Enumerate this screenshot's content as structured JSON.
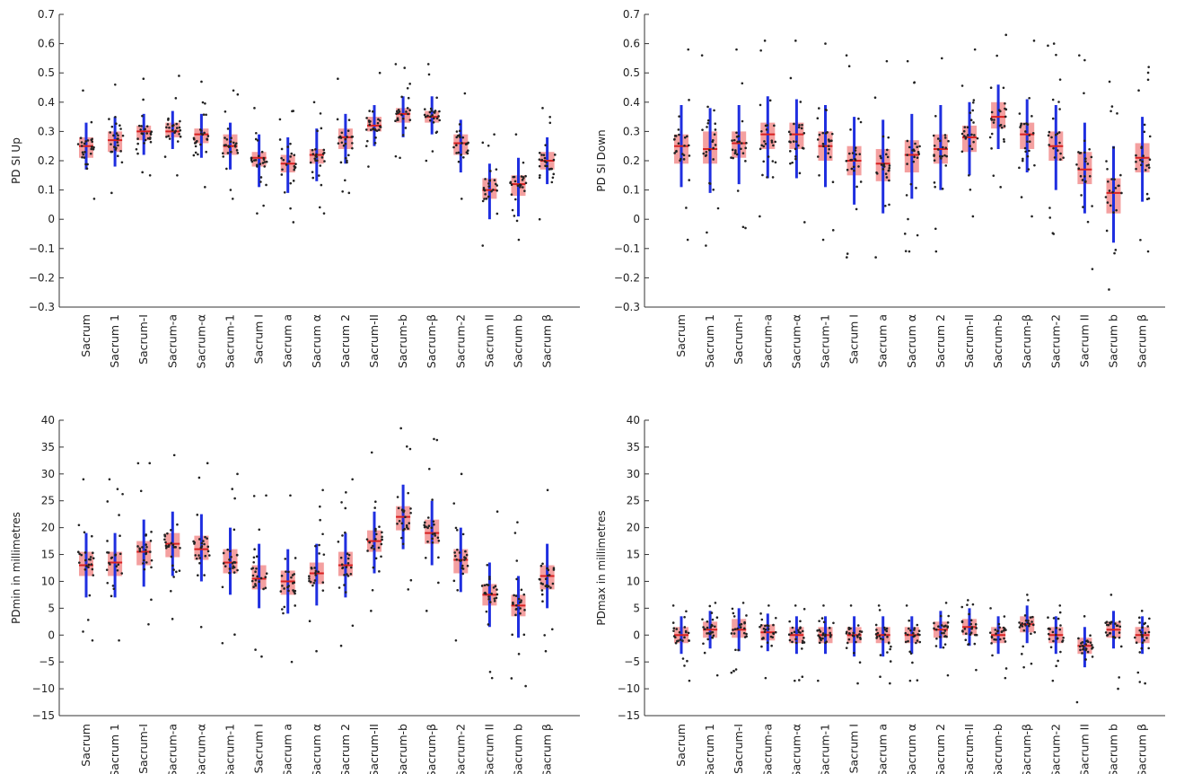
{
  "categories": [
    "Sacrum",
    "Sacrum 1",
    "Sacrum-I",
    "Sacrum-a",
    "Sacrum-α",
    "Sacrum-1",
    "Sacrum I",
    "Sacrum a",
    "Sacrum α",
    "Sacrum 2",
    "Sacrum-II",
    "Sacrum-b",
    "Sacrum-β",
    "Sacrum-2",
    "Sacrum II",
    "Sacrum b",
    "Sacrum β"
  ],
  "colors": {
    "box": "#f4a0a0",
    "median": "#d62020",
    "whisker": "#1f2fe0",
    "points": "#222222",
    "axis": "#333333"
  },
  "chart_data": [
    {
      "type": "box",
      "ylabel": "PD SI Up",
      "ylim": [
        -0.3,
        0.7
      ],
      "yticks": [
        -0.3,
        -0.2,
        -0.1,
        0,
        0.1,
        0.2,
        0.3,
        0.4,
        0.5,
        0.6,
        0.7
      ],
      "ytick_labels": [
        "−0.3",
        "−0.2",
        "−0.1",
        "0",
        "0.1",
        "0.2",
        "0.3",
        "0.4",
        "0.5",
        "0.6",
        "0.7"
      ],
      "categories": [
        "Sacrum",
        "Sacrum 1",
        "Sacrum-I",
        "Sacrum-a",
        "Sacrum-α",
        "Sacrum-1",
        "Sacrum I",
        "Sacrum a",
        "Sacrum α",
        "Sacrum 2",
        "Sacrum-II",
        "Sacrum-b",
        "Sacrum-β",
        "Sacrum-2",
        "Sacrum II",
        "Sacrum b",
        "Sacrum β"
      ],
      "boxes": [
        {
          "q1": 0.21,
          "median": 0.25,
          "q3": 0.28,
          "whislo": 0.17,
          "whishi": 0.33,
          "min": 0.07,
          "max": 0.44
        },
        {
          "q1": 0.23,
          "median": 0.27,
          "q3": 0.3,
          "whislo": 0.18,
          "whishi": 0.35,
          "min": 0.09,
          "max": 0.46
        },
        {
          "q1": 0.27,
          "median": 0.3,
          "q3": 0.32,
          "whislo": 0.22,
          "whishi": 0.36,
          "min": 0.15,
          "max": 0.48
        },
        {
          "q1": 0.28,
          "median": 0.3,
          "q3": 0.33,
          "whislo": 0.24,
          "whishi": 0.37,
          "min": 0.15,
          "max": 0.49
        },
        {
          "q1": 0.26,
          "median": 0.29,
          "q3": 0.31,
          "whislo": 0.21,
          "whishi": 0.36,
          "min": 0.11,
          "max": 0.47
        },
        {
          "q1": 0.22,
          "median": 0.25,
          "q3": 0.29,
          "whislo": 0.17,
          "whishi": 0.33,
          "min": 0.07,
          "max": 0.44
        },
        {
          "q1": 0.18,
          "median": 0.21,
          "q3": 0.23,
          "whislo": 0.11,
          "whishi": 0.29,
          "min": 0.02,
          "max": 0.38
        },
        {
          "q1": 0.16,
          "median": 0.19,
          "q3": 0.22,
          "whislo": 0.09,
          "whishi": 0.28,
          "min": -0.01,
          "max": 0.37
        },
        {
          "q1": 0.19,
          "median": 0.22,
          "q3": 0.24,
          "whislo": 0.13,
          "whishi": 0.31,
          "min": 0.02,
          "max": 0.4
        },
        {
          "q1": 0.24,
          "median": 0.28,
          "q3": 0.31,
          "whislo": 0.19,
          "whishi": 0.36,
          "min": 0.09,
          "max": 0.48
        },
        {
          "q1": 0.3,
          "median": 0.32,
          "q3": 0.35,
          "whislo": 0.25,
          "whishi": 0.39,
          "min": 0.18,
          "max": 0.5
        },
        {
          "q1": 0.33,
          "median": 0.36,
          "q3": 0.38,
          "whislo": 0.28,
          "whishi": 0.42,
          "min": 0.21,
          "max": 0.53
        },
        {
          "q1": 0.33,
          "median": 0.35,
          "q3": 0.37,
          "whislo": 0.29,
          "whishi": 0.42,
          "min": 0.2,
          "max": 0.53
        },
        {
          "q1": 0.22,
          "median": 0.26,
          "q3": 0.29,
          "whislo": 0.16,
          "whishi": 0.34,
          "min": 0.07,
          "max": 0.43
        },
        {
          "q1": 0.07,
          "median": 0.1,
          "q3": 0.14,
          "whislo": 0.0,
          "whishi": 0.19,
          "min": -0.09,
          "max": 0.29
        },
        {
          "q1": 0.08,
          "median": 0.12,
          "q3": 0.15,
          "whislo": 0.01,
          "whishi": 0.21,
          "min": -0.07,
          "max": 0.29
        },
        {
          "q1": 0.17,
          "median": 0.2,
          "q3": 0.23,
          "whislo": 0.12,
          "whishi": 0.28,
          "min": 0.0,
          "max": 0.38
        }
      ]
    },
    {
      "type": "box",
      "ylabel": "PD SI Down",
      "ylim": [
        -0.3,
        0.7
      ],
      "yticks": [
        -0.3,
        -0.2,
        -0.1,
        0,
        0.1,
        0.2,
        0.3,
        0.4,
        0.5,
        0.6,
        0.7
      ],
      "ytick_labels": [
        "−0.3",
        "−0.2",
        "−0.1",
        "0",
        "0.1",
        "0.2",
        "0.3",
        "0.4",
        "0.5",
        "0.6",
        "0.7"
      ],
      "categories": [
        "Sacrum",
        "Sacrum 1",
        "Sacrum-I",
        "Sacrum-a",
        "Sacrum-α",
        "Sacrum-1",
        "Sacrum I",
        "Sacrum a",
        "Sacrum α",
        "Sacrum 2",
        "Sacrum-II",
        "Sacrum-b",
        "Sacrum-β",
        "Sacrum-2",
        "Sacrum II",
        "Sacrum b",
        "Sacrum β"
      ],
      "boxes": [
        {
          "q1": 0.19,
          "median": 0.25,
          "q3": 0.29,
          "whislo": 0.11,
          "whishi": 0.39,
          "min": -0.07,
          "max": 0.58
        },
        {
          "q1": 0.19,
          "median": 0.24,
          "q3": 0.3,
          "whislo": 0.09,
          "whishi": 0.38,
          "min": -0.09,
          "max": 0.56
        },
        {
          "q1": 0.21,
          "median": 0.26,
          "q3": 0.3,
          "whislo": 0.12,
          "whishi": 0.39,
          "min": -0.03,
          "max": 0.58
        },
        {
          "q1": 0.24,
          "median": 0.29,
          "q3": 0.33,
          "whislo": 0.14,
          "whishi": 0.42,
          "min": 0.01,
          "max": 0.61
        },
        {
          "q1": 0.24,
          "median": 0.29,
          "q3": 0.33,
          "whislo": 0.14,
          "whishi": 0.41,
          "min": -0.01,
          "max": 0.61
        },
        {
          "q1": 0.2,
          "median": 0.25,
          "q3": 0.3,
          "whislo": 0.11,
          "whishi": 0.39,
          "min": -0.07,
          "max": 0.6
        },
        {
          "q1": 0.15,
          "median": 0.2,
          "q3": 0.25,
          "whislo": 0.05,
          "whishi": 0.35,
          "min": -0.13,
          "max": 0.56
        },
        {
          "q1": 0.13,
          "median": 0.19,
          "q3": 0.24,
          "whislo": 0.02,
          "whishi": 0.34,
          "min": -0.13,
          "max": 0.54
        },
        {
          "q1": 0.16,
          "median": 0.22,
          "q3": 0.27,
          "whislo": 0.07,
          "whishi": 0.36,
          "min": -0.11,
          "max": 0.54
        },
        {
          "q1": 0.19,
          "median": 0.24,
          "q3": 0.29,
          "whislo": 0.1,
          "whishi": 0.39,
          "min": -0.11,
          "max": 0.55
        },
        {
          "q1": 0.23,
          "median": 0.28,
          "q3": 0.32,
          "whislo": 0.15,
          "whishi": 0.4,
          "min": 0.01,
          "max": 0.58
        },
        {
          "q1": 0.31,
          "median": 0.35,
          "q3": 0.4,
          "whislo": 0.24,
          "whishi": 0.46,
          "min": 0.11,
          "max": 0.63
        },
        {
          "q1": 0.24,
          "median": 0.29,
          "q3": 0.33,
          "whislo": 0.16,
          "whishi": 0.41,
          "min": 0.01,
          "max": 0.61
        },
        {
          "q1": 0.2,
          "median": 0.25,
          "q3": 0.3,
          "whislo": 0.1,
          "whishi": 0.39,
          "min": -0.05,
          "max": 0.6
        },
        {
          "q1": 0.12,
          "median": 0.17,
          "q3": 0.23,
          "whislo": 0.02,
          "whishi": 0.33,
          "min": -0.17,
          "max": 0.56
        },
        {
          "q1": 0.02,
          "median": 0.09,
          "q3": 0.14,
          "whislo": -0.08,
          "whishi": 0.25,
          "min": -0.24,
          "max": 0.47
        },
        {
          "q1": 0.16,
          "median": 0.21,
          "q3": 0.26,
          "whislo": 0.06,
          "whishi": 0.35,
          "min": -0.11,
          "max": 0.52
        }
      ]
    },
    {
      "type": "box",
      "ylabel": "PDmin in millimetres",
      "ylim": [
        -15,
        40
      ],
      "yticks": [
        -15,
        -10,
        -5,
        0,
        5,
        10,
        15,
        20,
        25,
        30,
        35,
        40
      ],
      "ytick_labels": [
        "−15",
        "−10",
        "−5",
        "0",
        "5",
        "10",
        "15",
        "20",
        "25",
        "30",
        "35",
        "40"
      ],
      "categories": [
        "Sacrum",
        "Sacrum 1",
        "Sacrum-I",
        "Sacrum-a",
        "Sacrum-α",
        "Sacrum-1",
        "Sacrum I",
        "Sacrum a",
        "Sacrum α",
        "Sacrum 2",
        "Sacrum-II",
        "Sacrum-b",
        "Sacrum-β",
        "Sacrum-2",
        "Sacrum II",
        "Sacrum b",
        "Sacrum β"
      ],
      "boxes": [
        {
          "q1": 11.0,
          "median": 13.0,
          "q3": 15.5,
          "whislo": 7.0,
          "whishi": 19.0,
          "min": -1.0,
          "max": 29.0
        },
        {
          "q1": 11.0,
          "median": 13.5,
          "q3": 15.5,
          "whislo": 7.0,
          "whishi": 19.0,
          "min": -1.0,
          "max": 29.0
        },
        {
          "q1": 13.0,
          "median": 15.5,
          "q3": 17.5,
          "whislo": 9.0,
          "whishi": 21.5,
          "min": 2.0,
          "max": 32.0
        },
        {
          "q1": 14.5,
          "median": 17.0,
          "q3": 19.0,
          "whislo": 11.0,
          "whishi": 23.0,
          "min": 3.0,
          "max": 33.5
        },
        {
          "q1": 14.0,
          "median": 16.0,
          "q3": 18.5,
          "whislo": 10.0,
          "whishi": 22.5,
          "min": 1.5,
          "max": 32.0
        },
        {
          "q1": 11.5,
          "median": 13.5,
          "q3": 16.0,
          "whislo": 7.5,
          "whishi": 20.0,
          "min": -1.5,
          "max": 30.0
        },
        {
          "q1": 8.5,
          "median": 10.5,
          "q3": 13.0,
          "whislo": 5.0,
          "whishi": 17.0,
          "min": -4.0,
          "max": 26.0
        },
        {
          "q1": 7.5,
          "median": 10.0,
          "q3": 12.0,
          "whislo": 4.0,
          "whishi": 16.0,
          "min": -5.0,
          "max": 26.0
        },
        {
          "q1": 9.5,
          "median": 11.5,
          "q3": 13.5,
          "whislo": 5.5,
          "whishi": 17.0,
          "min": -3.0,
          "max": 27.0
        },
        {
          "q1": 11.0,
          "median": 13.0,
          "q3": 15.5,
          "whislo": 7.0,
          "whishi": 19.0,
          "min": -2.0,
          "max": 29.0
        },
        {
          "q1": 15.5,
          "median": 17.5,
          "q3": 19.5,
          "whislo": 11.5,
          "whishi": 23.0,
          "min": 4.5,
          "max": 34.0
        },
        {
          "q1": 19.5,
          "median": 22.0,
          "q3": 24.0,
          "whislo": 16.0,
          "whishi": 28.0,
          "min": 8.5,
          "max": 38.5
        },
        {
          "q1": 17.0,
          "median": 19.0,
          "q3": 21.5,
          "whislo": 13.0,
          "whishi": 25.0,
          "min": 4.5,
          "max": 36.5
        },
        {
          "q1": 11.5,
          "median": 14.0,
          "q3": 16.0,
          "whislo": 8.0,
          "whishi": 20.0,
          "min": -1.0,
          "max": 30.0
        },
        {
          "q1": 5.5,
          "median": 7.5,
          "q3": 9.5,
          "whislo": 1.5,
          "whishi": 13.5,
          "min": -8.0,
          "max": 23.0
        },
        {
          "q1": 3.5,
          "median": 5.5,
          "q3": 7.5,
          "whislo": -0.5,
          "whishi": 11.0,
          "min": -9.5,
          "max": 21.0
        },
        {
          "q1": 8.5,
          "median": 11.0,
          "q3": 13.0,
          "whislo": 5.0,
          "whishi": 17.0,
          "min": -3.0,
          "max": 27.0
        }
      ]
    },
    {
      "type": "box",
      "ylabel": "PDmax in millimetres",
      "ylim": [
        -15,
        40
      ],
      "yticks": [
        -15,
        -10,
        -5,
        0,
        5,
        10,
        15,
        20,
        25,
        30,
        35,
        40
      ],
      "ytick_labels": [
        "−15",
        "−10",
        "−5",
        "0",
        "5",
        "10",
        "15",
        "20",
        "25",
        "30",
        "35",
        "40"
      ],
      "categories": [
        "Sacrum",
        "Sacrum 1",
        "Sacrum-I",
        "Sacrum-a",
        "Sacrum-α",
        "Sacrum-1",
        "Sacrum I",
        "Sacrum a",
        "Sacrum α",
        "Sacrum 2",
        "Sacrum-II",
        "Sacrum-b",
        "Sacrum-β",
        "Sacrum-2",
        "Sacrum II",
        "Sacrum b",
        "Sacrum β"
      ],
      "boxes": [
        {
          "q1": -1.5,
          "median": 0.0,
          "q3": 1.5,
          "whislo": -3.5,
          "whishi": 3.5,
          "min": -8.5,
          "max": 5.5
        },
        {
          "q1": -0.5,
          "median": 1.0,
          "q3": 2.5,
          "whislo": -2.5,
          "whishi": 4.5,
          "min": -7.5,
          "max": 6.0
        },
        {
          "q1": -0.5,
          "median": 1.0,
          "q3": 3.0,
          "whislo": -3.0,
          "whishi": 5.0,
          "min": -7.0,
          "max": 6.0
        },
        {
          "q1": -1.0,
          "median": 0.5,
          "q3": 2.0,
          "whislo": -3.0,
          "whishi": 4.0,
          "min": -8.0,
          "max": 5.5
        },
        {
          "q1": -1.5,
          "median": 0.0,
          "q3": 1.5,
          "whislo": -3.5,
          "whishi": 3.5,
          "min": -8.5,
          "max": 5.5
        },
        {
          "q1": -1.5,
          "median": 0.0,
          "q3": 1.5,
          "whislo": -3.5,
          "whishi": 3.5,
          "min": -8.5,
          "max": 5.5
        },
        {
          "q1": -1.5,
          "median": 0.0,
          "q3": 1.5,
          "whislo": -4.0,
          "whishi": 3.5,
          "min": -9.0,
          "max": 5.5
        },
        {
          "q1": -1.5,
          "median": 0.0,
          "q3": 1.5,
          "whislo": -4.0,
          "whishi": 3.5,
          "min": -9.0,
          "max": 5.5
        },
        {
          "q1": -1.5,
          "median": 0.0,
          "q3": 1.5,
          "whislo": -3.5,
          "whishi": 3.5,
          "min": -8.5,
          "max": 5.5
        },
        {
          "q1": -0.5,
          "median": 1.0,
          "q3": 2.5,
          "whislo": -2.5,
          "whishi": 4.5,
          "min": -7.5,
          "max": 6.0
        },
        {
          "q1": 0.0,
          "median": 1.5,
          "q3": 3.0,
          "whislo": -2.0,
          "whishi": 5.0,
          "min": -6.5,
          "max": 6.5
        },
        {
          "q1": -1.5,
          "median": 0.0,
          "q3": 1.5,
          "whislo": -3.5,
          "whishi": 3.5,
          "min": -8.0,
          "max": 5.0
        },
        {
          "q1": 0.5,
          "median": 2.0,
          "q3": 3.5,
          "whislo": -1.5,
          "whishi": 5.5,
          "min": -6.0,
          "max": 7.5
        },
        {
          "q1": -1.5,
          "median": 0.0,
          "q3": 1.5,
          "whislo": -3.5,
          "whishi": 3.5,
          "min": -8.5,
          "max": 5.5
        },
        {
          "q1": -3.5,
          "median": -2.0,
          "q3": -0.5,
          "whislo": -6.0,
          "whishi": 1.5,
          "min": -12.5,
          "max": 3.5
        },
        {
          "q1": -0.5,
          "median": 1.0,
          "q3": 2.5,
          "whislo": -2.5,
          "whishi": 4.5,
          "min": -10.0,
          "max": 7.5
        },
        {
          "q1": -1.5,
          "median": 0.0,
          "q3": 1.5,
          "whislo": -3.5,
          "whishi": 3.5,
          "min": -9.0,
          "max": 4.5
        }
      ]
    }
  ]
}
